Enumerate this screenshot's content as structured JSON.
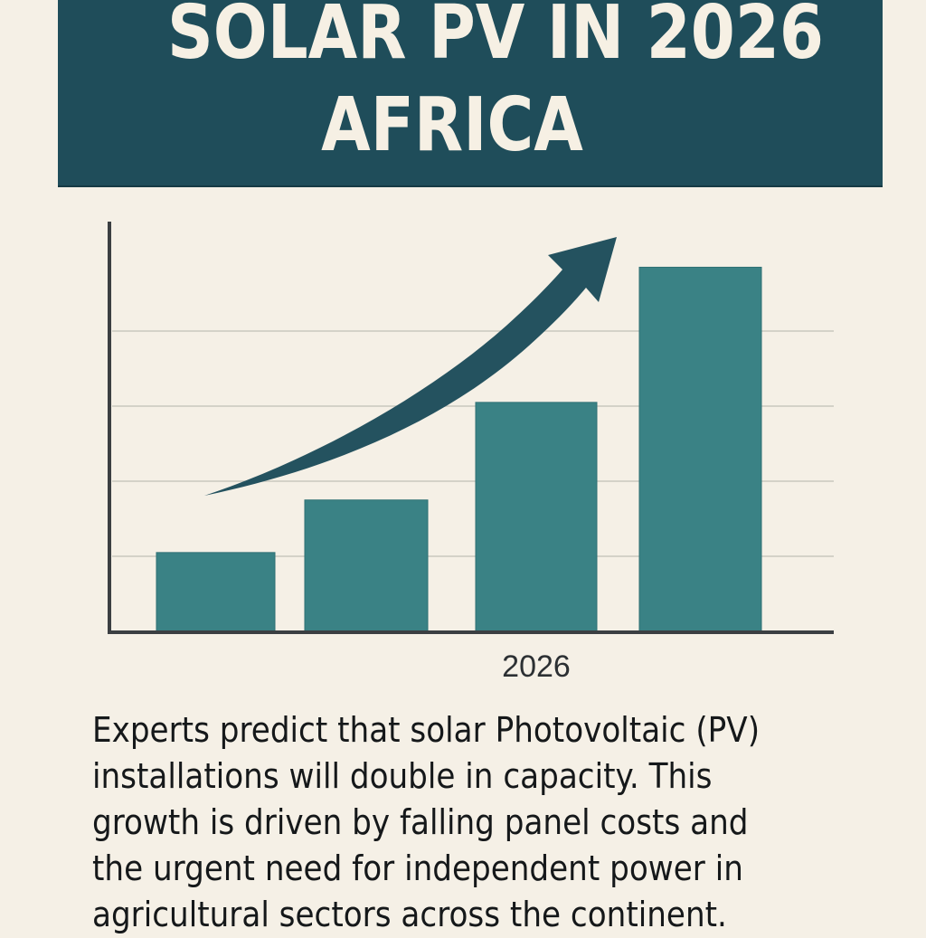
{
  "header": {
    "title_line1": "SOLAR PV IN 2026",
    "title_line2": "AFRICA"
  },
  "colors": {
    "banner": "#1f4d5a",
    "bar": "#3a8285",
    "arrow": "#24525f",
    "background": "#f5f0e6",
    "axis": "#3b3f42",
    "grid": "#c9c8bd"
  },
  "chart_data": {
    "type": "bar",
    "title": "",
    "xlabel": "2026",
    "ylabel": "",
    "categories": [
      "",
      "",
      "",
      ""
    ],
    "values": [
      1.05,
      1.75,
      3.05,
      4.85
    ],
    "ylim": [
      0,
      5.4
    ],
    "gridlines": [
      1,
      2,
      3,
      4
    ],
    "grid": true,
    "annotations": [
      {
        "type": "trend-arrow",
        "direction": "upward",
        "label": ""
      }
    ]
  },
  "body": {
    "paragraph": "Experts predict that solar Photovoltaic (PV)\ninstallations will double in capacity. This\ngrowth is driven by falling panel costs and\nthe urgent need for independent power in\nagricultural sectors across the continent."
  }
}
